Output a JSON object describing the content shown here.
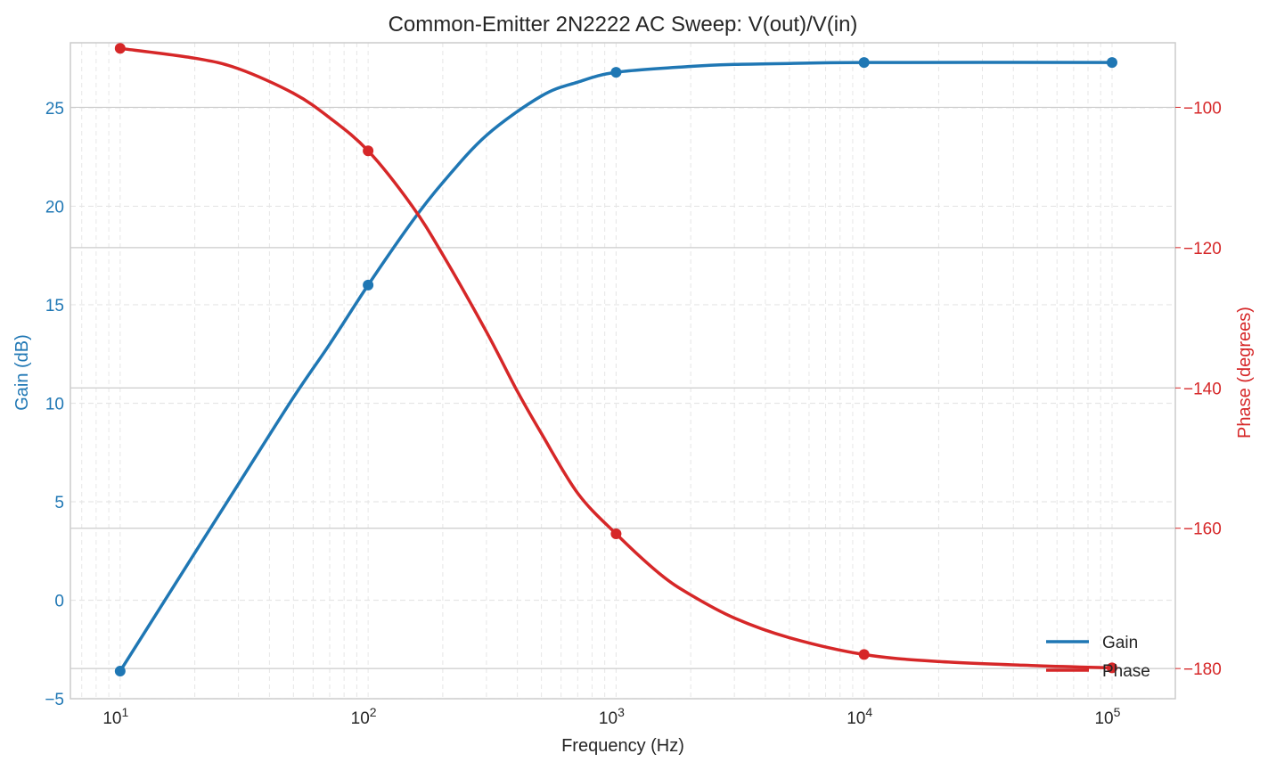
{
  "colors": {
    "gain": "#1f77b4",
    "phase": "#d62728",
    "grid_minor": "#e6e6e6",
    "grid_major": "#cccccc",
    "frame": "#cccccc",
    "text": "#262626"
  },
  "chart_data": {
    "type": "line",
    "title": "Common-Emitter 2N2222 AC Sweep: V(out)/V(in)",
    "xlabel": "Frequency (Hz)",
    "ylabel_left": "Gain (dB)",
    "ylabel_right": "Phase (degrees)",
    "x_scale": "log",
    "xlim": [
      6.3,
      180000
    ],
    "ylim_left": [
      -5,
      28.3
    ],
    "ylim_right": [
      -184.3,
      -90.8
    ],
    "x_ticks": [
      {
        "value": 10,
        "base": "10",
        "exp": "1"
      },
      {
        "value": 100,
        "base": "10",
        "exp": "2"
      },
      {
        "value": 1000,
        "base": "10",
        "exp": "3"
      },
      {
        "value": 10000,
        "base": "10",
        "exp": "4"
      },
      {
        "value": 100000,
        "base": "10",
        "exp": "5"
      }
    ],
    "y_ticks_left": [
      -5,
      0,
      5,
      10,
      15,
      20,
      25
    ],
    "y_tick_labels_left": [
      "−5",
      "0",
      "5",
      "10",
      "15",
      "20",
      "25"
    ],
    "y_ticks_right": [
      -180,
      -160,
      -140,
      -120,
      -100
    ],
    "y_tick_labels_right": [
      "−180",
      "−160",
      "−140",
      "−120",
      "−100"
    ],
    "grid": true,
    "legend": {
      "position": "lower-right",
      "entries": [
        "Gain",
        "Phase"
      ]
    },
    "series": [
      {
        "name": "Gain",
        "axis": "left",
        "markers": {
          "x": [
            10,
            100,
            1000,
            10000,
            100000
          ],
          "y": [
            -3.6,
            16.0,
            26.8,
            27.3,
            27.3
          ]
        },
        "curve": {
          "x": [
            10,
            20,
            30,
            50,
            70,
            100,
            150,
            200,
            300,
            500,
            700,
            1000,
            2000,
            3000,
            5000,
            10000,
            100000
          ],
          "y": [
            -3.6,
            2.4,
            5.9,
            10.3,
            13.0,
            16.0,
            19.2,
            21.2,
            23.6,
            25.6,
            26.3,
            26.8,
            27.1,
            27.2,
            27.25,
            27.3,
            27.3
          ]
        }
      },
      {
        "name": "Phase",
        "axis": "right",
        "markers": {
          "x": [
            10,
            100,
            1000,
            10000,
            100000
          ],
          "y": [
            -91.6,
            -106.2,
            -160.8,
            -178.0,
            -179.9
          ]
        },
        "curve": {
          "x": [
            10,
            20,
            30,
            50,
            70,
            100,
            150,
            200,
            300,
            400,
            500,
            700,
            1000,
            1500,
            2000,
            3000,
            5000,
            10000,
            20000,
            50000,
            100000
          ],
          "y": [
            -91.6,
            -93.0,
            -94.5,
            -98.0,
            -101.5,
            -106.2,
            -114.0,
            -121.0,
            -132.0,
            -140.5,
            -146.5,
            -155.0,
            -160.8,
            -166.5,
            -169.5,
            -172.8,
            -175.6,
            -178.0,
            -179.0,
            -179.6,
            -179.9
          ]
        }
      }
    ]
  }
}
